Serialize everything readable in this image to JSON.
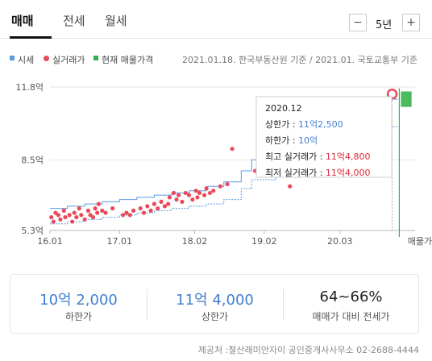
{
  "tabs": [
    {
      "label": "매매",
      "active": true
    },
    {
      "label": "전세",
      "active": false
    },
    {
      "label": "월세",
      "active": false
    }
  ],
  "period": {
    "minus": "−",
    "label": "5년",
    "plus": "+"
  },
  "legend": {
    "items": [
      {
        "label": "시세",
        "color": "#5a9be0",
        "shape": "square"
      },
      {
        "label": "실거래가",
        "color": "#ea4a5a",
        "shape": "dot"
      },
      {
        "label": "현재 매물가격",
        "color": "#2fb24a",
        "shape": "square"
      }
    ]
  },
  "source": "2021.01.18. 한국부동산원 기준 / 2021.01. 국토교통부 기준",
  "chart_data": {
    "type": "line",
    "xlabel": "",
    "ylabel": "",
    "ylim": [
      5.3,
      11.8
    ],
    "yticks": [
      "11.8억",
      "8.5억",
      "5.3억"
    ],
    "ytick_values": [
      11.8,
      8.5,
      5.3
    ],
    "xlim": [
      2016.0,
      2021.25
    ],
    "xticks": [
      "16.01",
      "17.01",
      "18.02",
      "19.02",
      "20.03"
    ],
    "xtick_values": [
      2016.0,
      2017.0,
      2018.08,
      2019.08,
      2020.17
    ],
    "extra_label": "매물가격",
    "series": [
      {
        "name": "시세",
        "color": "#5a9be0",
        "kind": "line-upper",
        "x": [
          2016.0,
          2016.25,
          2016.5,
          2016.75,
          2017.0,
          2017.25,
          2017.5,
          2017.75,
          2018.0,
          2018.25,
          2018.5,
          2018.75,
          2018.9,
          2019.0,
          2019.25,
          2019.5,
          2019.75,
          2020.0,
          2020.25,
          2020.5,
          2020.75,
          2020.92,
          2021.0
        ],
        "y": [
          6.3,
          6.4,
          6.5,
          6.6,
          6.7,
          6.8,
          6.9,
          7.0,
          7.1,
          7.3,
          7.5,
          8.0,
          8.5,
          8.5,
          8.8,
          9.2,
          9.6,
          10.0,
          10.4,
          10.8,
          11.2,
          11.25,
          11.25
        ]
      },
      {
        "name": "시세",
        "color": "#5a9be0",
        "kind": "line-lower",
        "x": [
          2016.0,
          2016.25,
          2016.5,
          2016.75,
          2017.0,
          2017.25,
          2017.5,
          2017.75,
          2018.0,
          2018.25,
          2018.5,
          2018.75,
          2018.9,
          2019.0,
          2019.25,
          2019.5,
          2019.75,
          2020.0,
          2020.25,
          2020.5,
          2020.75,
          2020.92,
          2021.0
        ],
        "y": [
          5.6,
          5.7,
          5.8,
          5.9,
          6.0,
          6.1,
          6.2,
          6.3,
          6.4,
          6.5,
          6.7,
          7.2,
          7.6,
          7.6,
          7.9,
          8.2,
          8.6,
          9.0,
          9.4,
          9.7,
          10.0,
          10.0,
          10.0
        ]
      },
      {
        "name": "실거래가",
        "color": "#ea4a5a",
        "kind": "scatter",
        "points": [
          [
            2016.02,
            5.9
          ],
          [
            2016.05,
            5.7
          ],
          [
            2016.08,
            6.1
          ],
          [
            2016.12,
            6.0
          ],
          [
            2016.15,
            5.8
          ],
          [
            2016.2,
            6.2
          ],
          [
            2016.22,
            5.9
          ],
          [
            2016.28,
            6.0
          ],
          [
            2016.32,
            5.7
          ],
          [
            2016.35,
            6.1
          ],
          [
            2016.38,
            5.9
          ],
          [
            2016.42,
            6.3
          ],
          [
            2016.45,
            6.0
          ],
          [
            2016.5,
            5.8
          ],
          [
            2016.55,
            6.2
          ],
          [
            2016.58,
            6.0
          ],
          [
            2016.62,
            5.9
          ],
          [
            2016.65,
            6.3
          ],
          [
            2016.68,
            6.1
          ],
          [
            2016.7,
            6.5
          ],
          [
            2016.75,
            6.2
          ],
          [
            2016.8,
            6.1
          ],
          [
            2016.9,
            6.3
          ],
          [
            2017.05,
            6.0
          ],
          [
            2017.1,
            6.1
          ],
          [
            2017.15,
            6.0
          ],
          [
            2017.2,
            6.2
          ],
          [
            2017.3,
            6.3
          ],
          [
            2017.35,
            6.1
          ],
          [
            2017.4,
            6.4
          ],
          [
            2017.45,
            6.2
          ],
          [
            2017.5,
            6.5
          ],
          [
            2017.55,
            6.3
          ],
          [
            2017.6,
            6.6
          ],
          [
            2017.65,
            6.4
          ],
          [
            2017.7,
            6.5
          ],
          [
            2017.72,
            6.8
          ],
          [
            2017.78,
            7.0
          ],
          [
            2017.82,
            6.7
          ],
          [
            2017.85,
            6.9
          ],
          [
            2017.9,
            6.6
          ],
          [
            2017.95,
            7.0
          ],
          [
            2018.0,
            6.9
          ],
          [
            2018.05,
            6.7
          ],
          [
            2018.1,
            7.1
          ],
          [
            2018.12,
            6.8
          ],
          [
            2018.15,
            7.0
          ],
          [
            2018.22,
            6.9
          ],
          [
            2018.25,
            7.2
          ],
          [
            2018.3,
            7.0
          ],
          [
            2018.35,
            7.1
          ],
          [
            2018.45,
            7.3
          ],
          [
            2018.55,
            7.4
          ],
          [
            2018.62,
            9.0
          ],
          [
            2018.95,
            8.0
          ],
          [
            2019.45,
            7.3
          ],
          [
            2020.92,
            11.48
          ]
        ]
      },
      {
        "name": "현재 매물가격",
        "color": "#2fb24a",
        "kind": "band",
        "x0": 2021.0,
        "x1": 2021.2,
        "y0": 10.9,
        "y1": 11.6
      }
    ]
  },
  "tooltip": {
    "date": "2020.12",
    "lines": [
      {
        "label": "상한가 : ",
        "value": "11억2,500",
        "color": "#3f7fcf"
      },
      {
        "label": "하한가 : ",
        "value": "10억",
        "color": "#3f7fcf"
      },
      {
        "label": "최고 실거래가 : ",
        "value": "11억4,800",
        "color": "#e0283c"
      },
      {
        "label": "최저 실거래가 : ",
        "value": "11억4,000",
        "color": "#e0283c"
      }
    ]
  },
  "summary": [
    {
      "value": "10억 2,000",
      "label": "하한가",
      "color": "#3f7fcf"
    },
    {
      "value": "11억 4,000",
      "label": "상한가",
      "color": "#3f7fcf"
    },
    {
      "value": "64~66%",
      "label": "매매가 대비 전세가",
      "color": "#222222"
    }
  ],
  "footer": "제공처 :철산래미안자이 공인중개사사무소 02-2688-4444"
}
